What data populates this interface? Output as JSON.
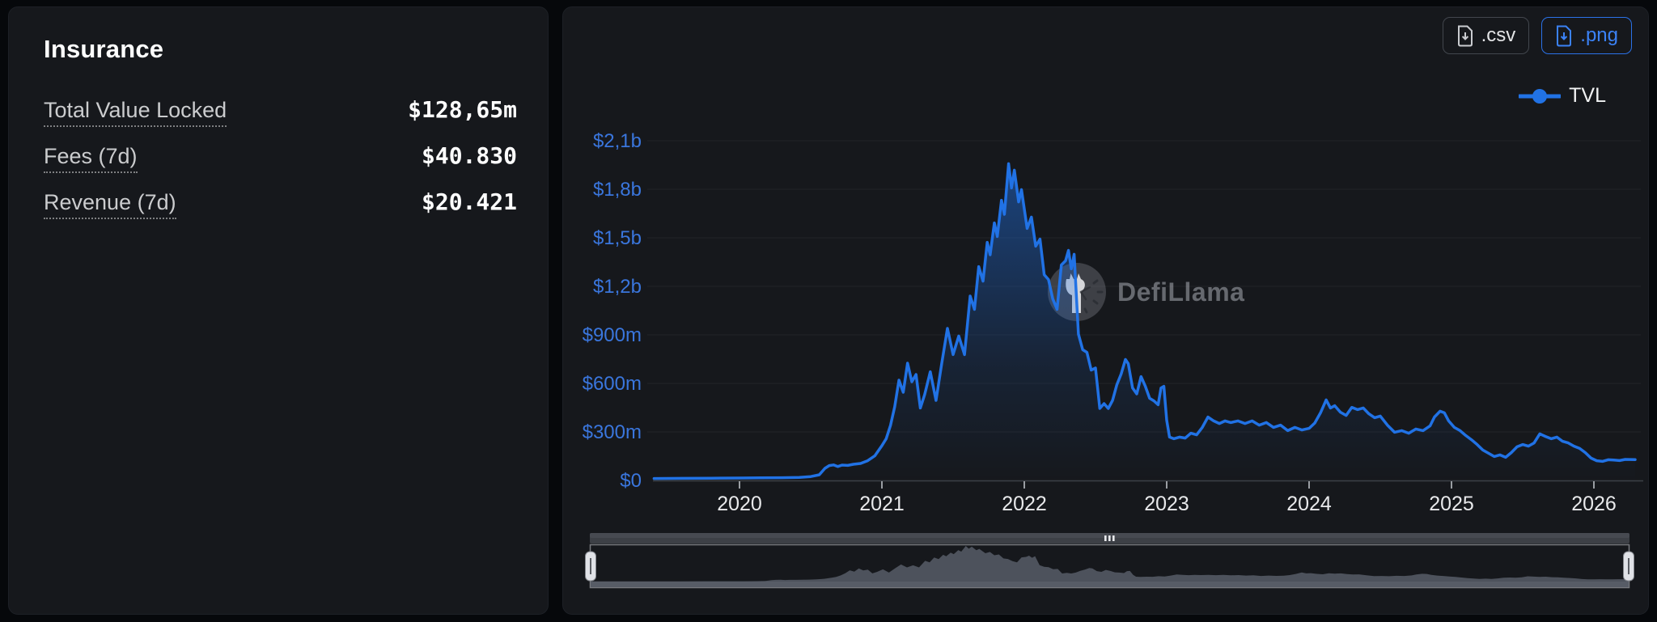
{
  "left_panel": {
    "title": "Insurance",
    "stats": [
      {
        "label": "Total Value Locked",
        "value": "$128,65m"
      },
      {
        "label": "Fees (7d)",
        "value": "$40.830"
      },
      {
        "label": "Revenue (7d)",
        "value": "$20.421"
      }
    ]
  },
  "chart_panel": {
    "csv_button": ".csv",
    "png_button": ".png",
    "legend": {
      "label": "TVL",
      "color": "#2172e5"
    },
    "watermark": "DefiLlama"
  },
  "chart_data": {
    "type": "area",
    "title": "TVL",
    "xlabel": "",
    "ylabel": "",
    "legend_position": "top-right",
    "grid": true,
    "x_range": [
      2019.4,
      2026.29
    ],
    "ylim_millions": [
      0,
      2100
    ],
    "y_ticks": [
      {
        "label": "$2,1b",
        "value": 2100
      },
      {
        "label": "$1,8b",
        "value": 1800
      },
      {
        "label": "$1,5b",
        "value": 1500
      },
      {
        "label": "$1,2b",
        "value": 1200
      },
      {
        "label": "$900m",
        "value": 900
      },
      {
        "label": "$600m",
        "value": 600
      },
      {
        "label": "$300m",
        "value": 300
      },
      {
        "label": "$0",
        "value": 0
      }
    ],
    "x_ticks": [
      2020,
      2021,
      2022,
      2023,
      2024,
      2025,
      2026
    ],
    "series": [
      {
        "name": "TVL",
        "color": "#2172e5",
        "unit": "millions_usd",
        "points": [
          [
            2019.4,
            12
          ],
          [
            2019.6,
            13
          ],
          [
            2019.8,
            14
          ],
          [
            2020.0,
            15
          ],
          [
            2020.15,
            16
          ],
          [
            2020.3,
            17
          ],
          [
            2020.42,
            19
          ],
          [
            2020.5,
            24
          ],
          [
            2020.56,
            35
          ],
          [
            2020.6,
            75
          ],
          [
            2020.63,
            92
          ],
          [
            2020.66,
            96
          ],
          [
            2020.69,
            86
          ],
          [
            2020.72,
            95
          ],
          [
            2020.76,
            93
          ],
          [
            2020.8,
            100
          ],
          [
            2020.85,
            105
          ],
          [
            2020.9,
            122
          ],
          [
            2020.95,
            152
          ],
          [
            2021.0,
            215
          ],
          [
            2021.03,
            258
          ],
          [
            2021.06,
            340
          ],
          [
            2021.09,
            455
          ],
          [
            2021.12,
            620
          ],
          [
            2021.15,
            545
          ],
          [
            2021.18,
            725
          ],
          [
            2021.21,
            610
          ],
          [
            2021.24,
            655
          ],
          [
            2021.27,
            448
          ],
          [
            2021.3,
            530
          ],
          [
            2021.34,
            672
          ],
          [
            2021.38,
            495
          ],
          [
            2021.42,
            722
          ],
          [
            2021.46,
            940
          ],
          [
            2021.5,
            778
          ],
          [
            2021.54,
            893
          ],
          [
            2021.58,
            778
          ],
          [
            2021.62,
            1140
          ],
          [
            2021.65,
            1058
          ],
          [
            2021.68,
            1322
          ],
          [
            2021.71,
            1232
          ],
          [
            2021.74,
            1472
          ],
          [
            2021.76,
            1395
          ],
          [
            2021.79,
            1592
          ],
          [
            2021.81,
            1508
          ],
          [
            2021.84,
            1732
          ],
          [
            2021.86,
            1645
          ],
          [
            2021.89,
            1958
          ],
          [
            2021.91,
            1808
          ],
          [
            2021.93,
            1918
          ],
          [
            2021.96,
            1722
          ],
          [
            2021.98,
            1798
          ],
          [
            2022.02,
            1558
          ],
          [
            2022.05,
            1628
          ],
          [
            2022.08,
            1448
          ],
          [
            2022.11,
            1492
          ],
          [
            2022.14,
            1272
          ],
          [
            2022.17,
            1242
          ],
          [
            2022.2,
            1122
          ],
          [
            2022.23,
            1058
          ],
          [
            2022.26,
            1332
          ],
          [
            2022.29,
            1358
          ],
          [
            2022.31,
            1422
          ],
          [
            2022.33,
            1308
          ],
          [
            2022.35,
            1398
          ],
          [
            2022.38,
            905
          ],
          [
            2022.41,
            808
          ],
          [
            2022.44,
            792
          ],
          [
            2022.47,
            682
          ],
          [
            2022.5,
            695
          ],
          [
            2022.53,
            445
          ],
          [
            2022.56,
            475
          ],
          [
            2022.59,
            445
          ],
          [
            2022.62,
            495
          ],
          [
            2022.65,
            592
          ],
          [
            2022.68,
            658
          ],
          [
            2022.71,
            748
          ],
          [
            2022.73,
            722
          ],
          [
            2022.76,
            572
          ],
          [
            2022.79,
            535
          ],
          [
            2022.82,
            642
          ],
          [
            2022.85,
            582
          ],
          [
            2022.88,
            508
          ],
          [
            2022.91,
            492
          ],
          [
            2022.94,
            468
          ],
          [
            2022.96,
            572
          ],
          [
            2022.98,
            582
          ],
          [
            2023.0,
            372
          ],
          [
            2023.02,
            268
          ],
          [
            2023.05,
            258
          ],
          [
            2023.09,
            268
          ],
          [
            2023.13,
            262
          ],
          [
            2023.17,
            292
          ],
          [
            2023.21,
            282
          ],
          [
            2023.25,
            328
          ],
          [
            2023.29,
            392
          ],
          [
            2023.33,
            368
          ],
          [
            2023.37,
            352
          ],
          [
            2023.41,
            368
          ],
          [
            2023.45,
            358
          ],
          [
            2023.5,
            368
          ],
          [
            2023.55,
            352
          ],
          [
            2023.6,
            368
          ],
          [
            2023.65,
            342
          ],
          [
            2023.7,
            358
          ],
          [
            2023.75,
            328
          ],
          [
            2023.8,
            342
          ],
          [
            2023.85,
            308
          ],
          [
            2023.9,
            328
          ],
          [
            2023.95,
            312
          ],
          [
            2024.0,
            322
          ],
          [
            2024.04,
            355
          ],
          [
            2024.08,
            418
          ],
          [
            2024.12,
            498
          ],
          [
            2024.15,
            448
          ],
          [
            2024.18,
            462
          ],
          [
            2024.22,
            422
          ],
          [
            2024.26,
            402
          ],
          [
            2024.3,
            452
          ],
          [
            2024.34,
            438
          ],
          [
            2024.38,
            448
          ],
          [
            2024.42,
            412
          ],
          [
            2024.46,
            388
          ],
          [
            2024.5,
            398
          ],
          [
            2024.55,
            342
          ],
          [
            2024.6,
            298
          ],
          [
            2024.65,
            308
          ],
          [
            2024.7,
            292
          ],
          [
            2024.75,
            318
          ],
          [
            2024.8,
            308
          ],
          [
            2024.85,
            338
          ],
          [
            2024.88,
            392
          ],
          [
            2024.92,
            428
          ],
          [
            2024.95,
            418
          ],
          [
            2024.98,
            368
          ],
          [
            2025.02,
            328
          ],
          [
            2025.06,
            308
          ],
          [
            2025.1,
            278
          ],
          [
            2025.14,
            252
          ],
          [
            2025.18,
            222
          ],
          [
            2025.22,
            188
          ],
          [
            2025.26,
            168
          ],
          [
            2025.3,
            148
          ],
          [
            2025.34,
            158
          ],
          [
            2025.38,
            143
          ],
          [
            2025.42,
            172
          ],
          [
            2025.46,
            208
          ],
          [
            2025.5,
            222
          ],
          [
            2025.54,
            212
          ],
          [
            2025.58,
            232
          ],
          [
            2025.62,
            288
          ],
          [
            2025.66,
            272
          ],
          [
            2025.7,
            258
          ],
          [
            2025.74,
            268
          ],
          [
            2025.78,
            242
          ],
          [
            2025.82,
            232
          ],
          [
            2025.86,
            212
          ],
          [
            2025.9,
            198
          ],
          [
            2025.94,
            172
          ],
          [
            2025.98,
            138
          ],
          [
            2026.02,
            122
          ],
          [
            2026.06,
            118
          ],
          [
            2026.1,
            128
          ],
          [
            2026.14,
            126
          ],
          [
            2026.18,
            123
          ],
          [
            2026.22,
            130
          ],
          [
            2026.29,
            129
          ]
        ]
      }
    ]
  }
}
